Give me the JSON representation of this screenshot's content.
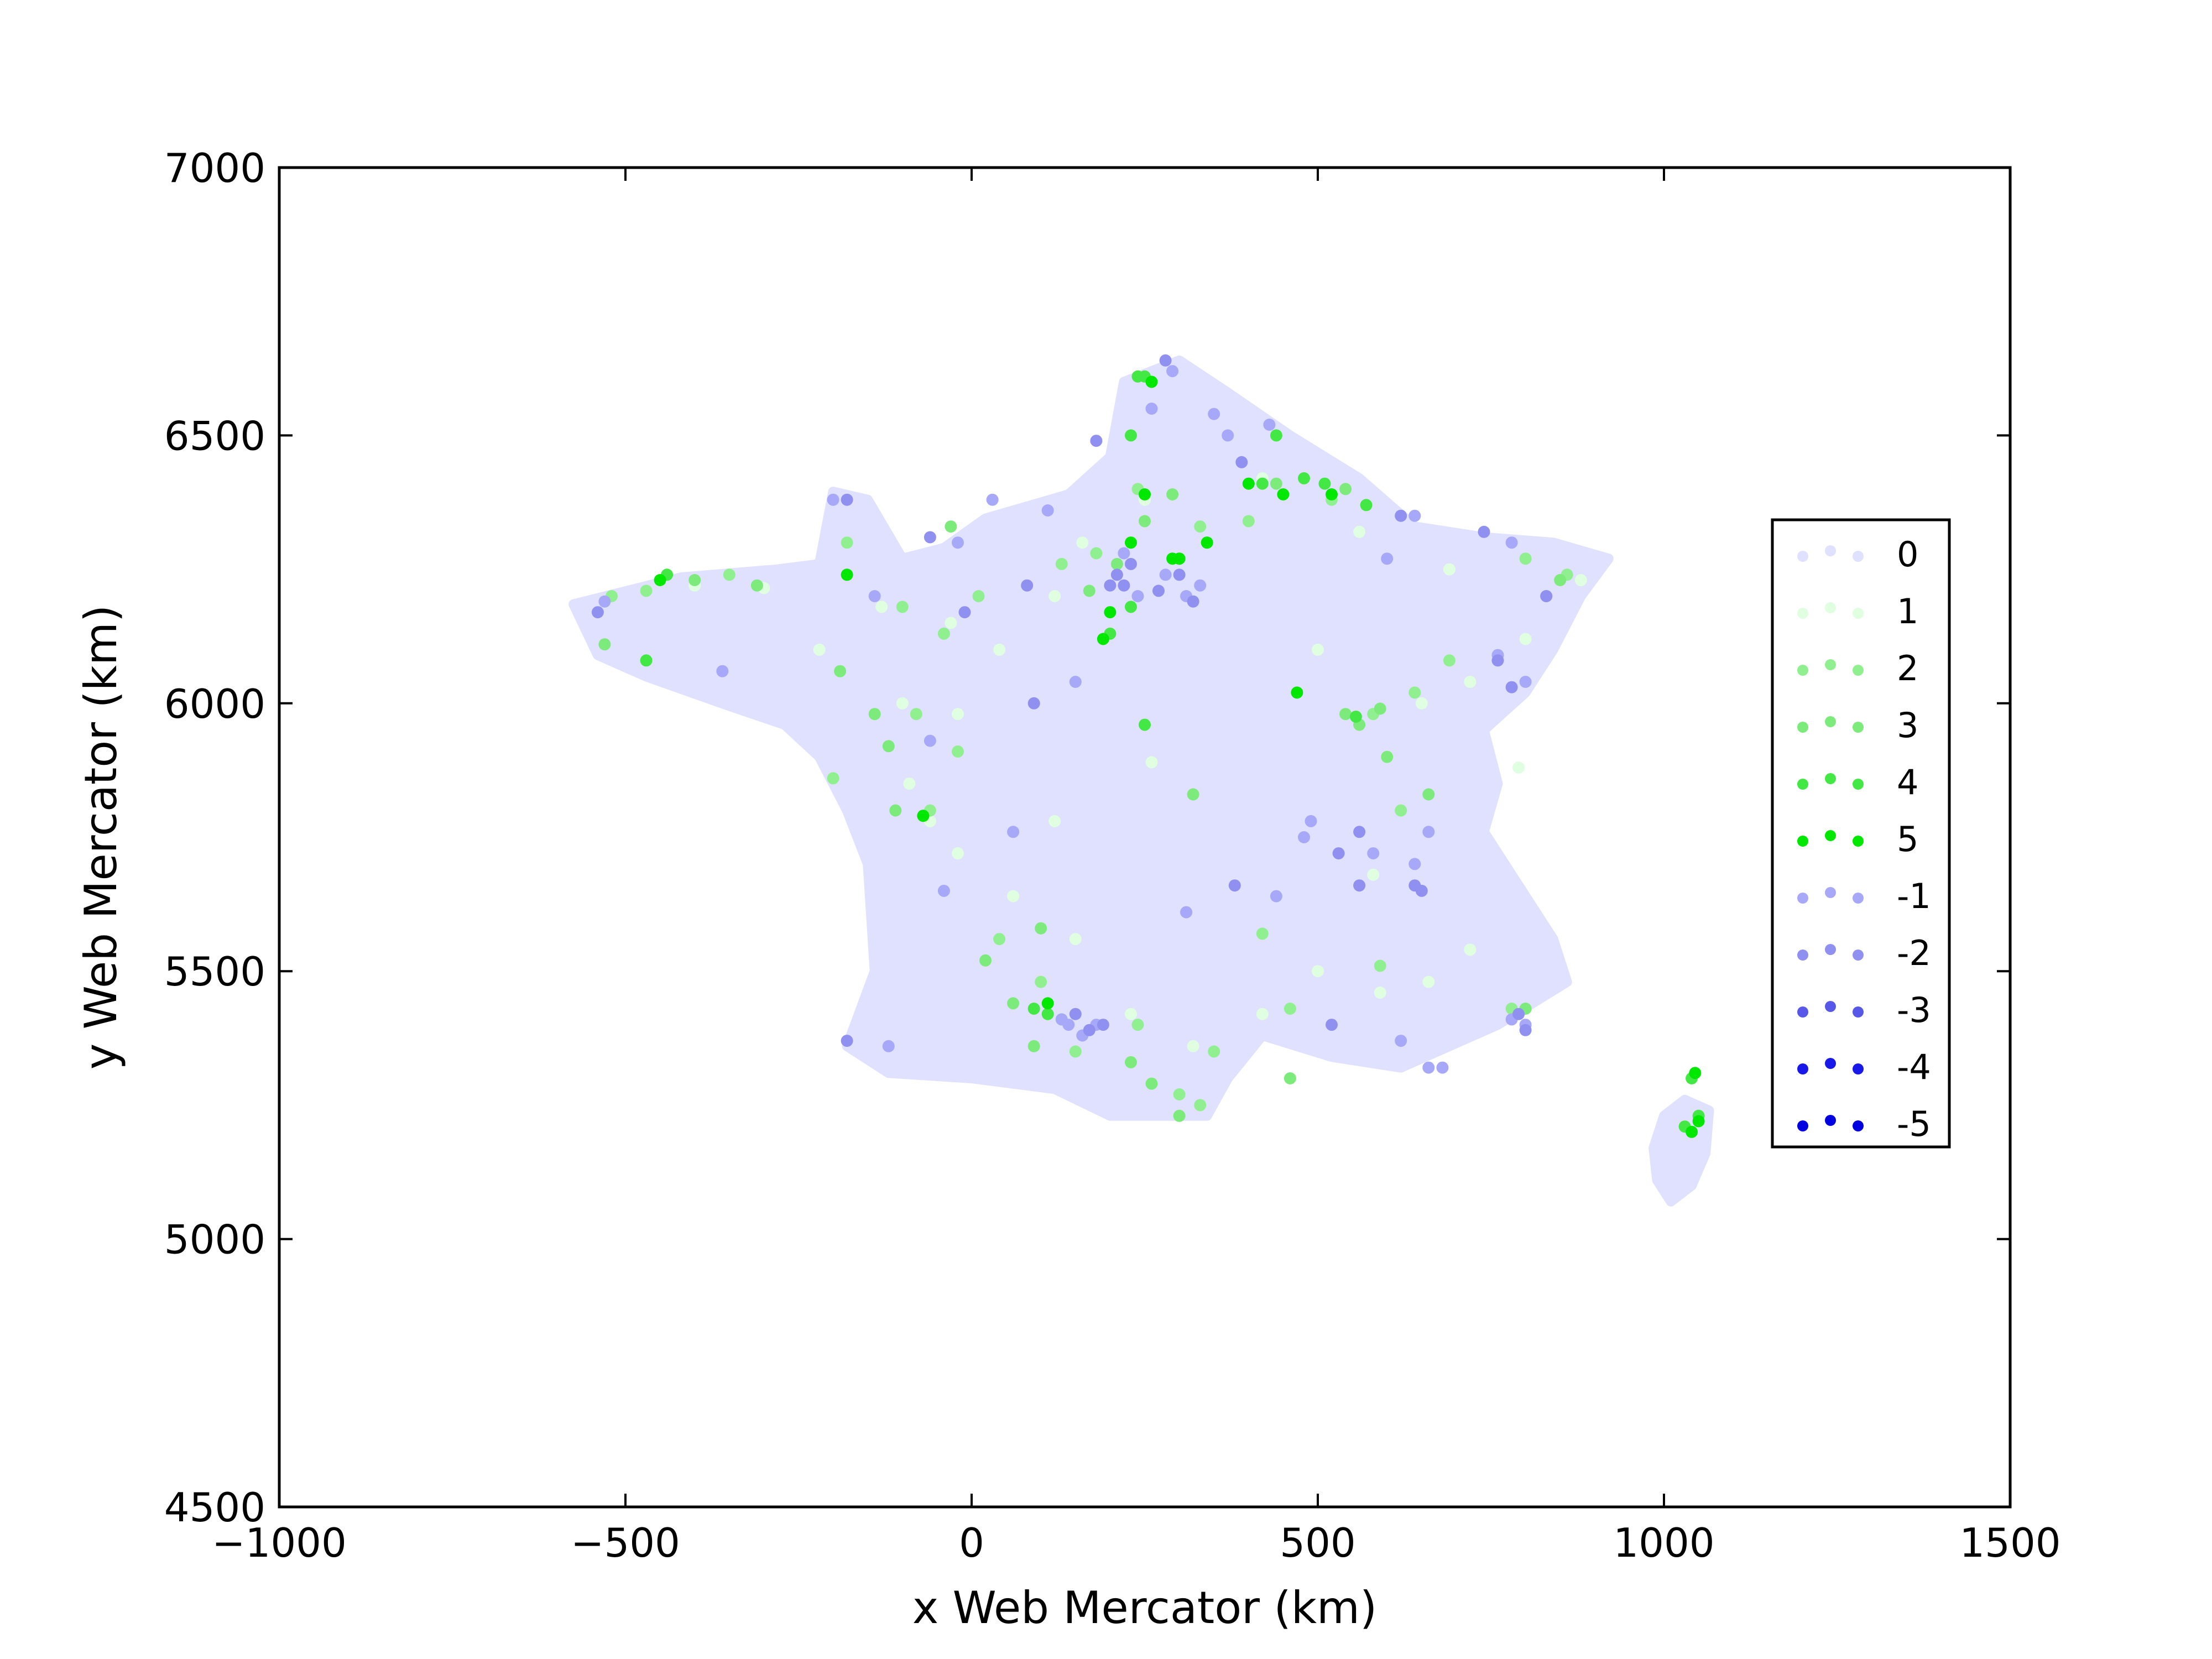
{
  "chart_data": {
    "type": "scatter",
    "title": "",
    "xlabel": "x Web Mercator (km)",
    "ylabel": "y Web Mercator (km)",
    "xlim": [
      -1000,
      1500
    ],
    "ylim": [
      4500,
      7000
    ],
    "xticks": [
      -1000,
      -500,
      0,
      500,
      1000,
      1500
    ],
    "yticks": [
      4500,
      5000,
      5500,
      6000,
      6500,
      7000
    ],
    "xtick_labels": [
      "−1000",
      "−500",
      "0",
      "500",
      "1000",
      "1500"
    ],
    "ytick_labels": [
      "4500",
      "5000",
      "5500",
      "6000",
      "6500",
      "7000"
    ],
    "grid": false,
    "legend_position": "center-right",
    "series": [
      {
        "name": "0",
        "color": "#e0e0ff",
        "role": "background-fill",
        "outline": [
          [
            -575,
            6185
          ],
          [
            -420,
            6235
          ],
          [
            -280,
            6250
          ],
          [
            -220,
            6260
          ],
          [
            -200,
            6395
          ],
          [
            -150,
            6380
          ],
          [
            -100,
            6270
          ],
          [
            -40,
            6290
          ],
          [
            20,
            6345
          ],
          [
            140,
            6390
          ],
          [
            200,
            6460
          ],
          [
            220,
            6600
          ],
          [
            300,
            6640
          ],
          [
            370,
            6580
          ],
          [
            460,
            6500
          ],
          [
            560,
            6420
          ],
          [
            640,
            6330
          ],
          [
            740,
            6310
          ],
          [
            840,
            6300
          ],
          [
            920,
            6270
          ],
          [
            880,
            6200
          ],
          [
            840,
            6100
          ],
          [
            800,
            6020
          ],
          [
            740,
            5950
          ],
          [
            760,
            5850
          ],
          [
            740,
            5760
          ],
          [
            790,
            5660
          ],
          [
            840,
            5560
          ],
          [
            860,
            5480
          ],
          [
            760,
            5400
          ],
          [
            620,
            5320
          ],
          [
            520,
            5340
          ],
          [
            420,
            5380
          ],
          [
            370,
            5300
          ],
          [
            340,
            5230
          ],
          [
            200,
            5230
          ],
          [
            120,
            5280
          ],
          [
            0,
            5300
          ],
          [
            -120,
            5310
          ],
          [
            -180,
            5360
          ],
          [
            -140,
            5500
          ],
          [
            -150,
            5700
          ],
          [
            -180,
            5800
          ],
          [
            -220,
            5900
          ],
          [
            -270,
            5960
          ],
          [
            -350,
            5995
          ],
          [
            -470,
            6050
          ],
          [
            -540,
            6090
          ]
        ],
        "corsica_outline": [
          [
            1030,
            5260
          ],
          [
            1065,
            5240
          ],
          [
            1060,
            5160
          ],
          [
            1040,
            5100
          ],
          [
            1010,
            5070
          ],
          [
            990,
            5110
          ],
          [
            985,
            5170
          ],
          [
            1000,
            5230
          ]
        ]
      },
      {
        "name": "1",
        "color": "#e0ffe0",
        "points": [
          [
            -400,
            6220
          ],
          [
            -300,
            6215
          ],
          [
            -130,
            6180
          ],
          [
            -100,
            6000
          ],
          [
            -90,
            5850
          ],
          [
            -60,
            5780
          ],
          [
            -20,
            5720
          ],
          [
            60,
            5640
          ],
          [
            150,
            5560
          ],
          [
            230,
            5420
          ],
          [
            320,
            5360
          ],
          [
            420,
            5420
          ],
          [
            500,
            5500
          ],
          [
            590,
            5460
          ],
          [
            660,
            5480
          ],
          [
            720,
            5540
          ],
          [
            580,
            5680
          ],
          [
            600,
            5900
          ],
          [
            650,
            6000
          ],
          [
            720,
            6040
          ],
          [
            800,
            6120
          ],
          [
            880,
            6230
          ],
          [
            560,
            6320
          ],
          [
            420,
            6420
          ],
          [
            250,
            6380
          ],
          [
            160,
            6300
          ],
          [
            120,
            6200
          ],
          [
            40,
            6100
          ],
          [
            -30,
            6150
          ],
          [
            -180,
            6300
          ],
          [
            -220,
            6100
          ],
          [
            -20,
            5980
          ],
          [
            120,
            5780
          ],
          [
            260,
            5890
          ],
          [
            500,
            6100
          ],
          [
            690,
            6250
          ],
          [
            790,
            5880
          ]
        ]
      },
      {
        "name": "2",
        "color": "#90f090",
        "points": [
          [
            -520,
            6200
          ],
          [
            -470,
            6210
          ],
          [
            -350,
            6240
          ],
          [
            -180,
            6300
          ],
          [
            -100,
            6180
          ],
          [
            -80,
            5980
          ],
          [
            -60,
            5800
          ],
          [
            40,
            5560
          ],
          [
            100,
            5480
          ],
          [
            150,
            5350
          ],
          [
            240,
            5400
          ],
          [
            300,
            5270
          ],
          [
            330,
            5250
          ],
          [
            350,
            5350
          ],
          [
            460,
            5430
          ],
          [
            590,
            5510
          ],
          [
            620,
            5800
          ],
          [
            580,
            5980
          ],
          [
            640,
            6020
          ],
          [
            690,
            6080
          ],
          [
            780,
            5430
          ],
          [
            860,
            6240
          ],
          [
            800,
            6270
          ],
          [
            520,
            6380
          ],
          [
            400,
            6340
          ],
          [
            330,
            6330
          ],
          [
            240,
            6400
          ],
          [
            180,
            6280
          ],
          [
            130,
            6260
          ],
          [
            10,
            6200
          ],
          [
            -40,
            6130
          ],
          [
            -200,
            5860
          ],
          [
            -20,
            5910
          ],
          [
            420,
            5570
          ]
        ]
      },
      {
        "name": "3",
        "color": "#7ceb7c",
        "points": [
          [
            -530,
            6110
          ],
          [
            -400,
            6230
          ],
          [
            -310,
            6220
          ],
          [
            -190,
            6060
          ],
          [
            -140,
            5980
          ],
          [
            -110,
            5800
          ],
          [
            20,
            5520
          ],
          [
            60,
            5440
          ],
          [
            90,
            5360
          ],
          [
            130,
            5410
          ],
          [
            230,
            5330
          ],
          [
            260,
            5290
          ],
          [
            300,
            5230
          ],
          [
            460,
            5300
          ],
          [
            540,
            5980
          ],
          [
            560,
            5960
          ],
          [
            590,
            5990
          ],
          [
            600,
            5900
          ],
          [
            660,
            5830
          ],
          [
            800,
            5430
          ],
          [
            850,
            6230
          ],
          [
            540,
            6400
          ],
          [
            440,
            6410
          ],
          [
            290,
            6390
          ],
          [
            250,
            6340
          ],
          [
            210,
            6260
          ],
          [
            170,
            6210
          ],
          [
            -30,
            6330
          ],
          [
            -120,
            5920
          ],
          [
            100,
            5580
          ],
          [
            320,
            5830
          ]
        ]
      },
      {
        "name": "4",
        "color": "#44e844",
        "points": [
          [
            -470,
            6080
          ],
          [
            -440,
            6240
          ],
          [
            -70,
            5790
          ],
          [
            90,
            5430
          ],
          [
            110,
            5420
          ],
          [
            250,
            5960
          ],
          [
            230,
            6500
          ],
          [
            250,
            6610
          ],
          [
            420,
            6410
          ],
          [
            440,
            6500
          ],
          [
            480,
            6420
          ],
          [
            510,
            6410
          ],
          [
            570,
            6370
          ],
          [
            555,
            5975
          ],
          [
            1030,
            5210
          ],
          [
            1050,
            5230
          ],
          [
            1040,
            5300
          ],
          [
            300,
            6270
          ],
          [
            340,
            6300
          ],
          [
            230,
            6180
          ],
          [
            200,
            6130
          ],
          [
            240,
            6610
          ]
        ]
      },
      {
        "name": "5",
        "color": "#00e800",
        "points": [
          [
            -450,
            6230
          ],
          [
            -180,
            6240
          ],
          [
            -70,
            5790
          ],
          [
            110,
            5440
          ],
          [
            190,
            6120
          ],
          [
            200,
            6170
          ],
          [
            230,
            6300
          ],
          [
            250,
            6390
          ],
          [
            260,
            6600
          ],
          [
            290,
            6270
          ],
          [
            300,
            6270
          ],
          [
            340,
            6300
          ],
          [
            400,
            6410
          ],
          [
            450,
            6390
          ],
          [
            520,
            6390
          ],
          [
            470,
            6020
          ],
          [
            1040,
            5200
          ],
          [
            1050,
            5220
          ],
          [
            1045,
            5310
          ]
        ]
      },
      {
        "name": "-1",
        "color": "#a8a8f8",
        "points": [
          [
            -530,
            6190
          ],
          [
            -360,
            6060
          ],
          [
            -200,
            6380
          ],
          [
            -140,
            6200
          ],
          [
            -20,
            6300
          ],
          [
            30,
            6380
          ],
          [
            110,
            6360
          ],
          [
            220,
            6280
          ],
          [
            240,
            6200
          ],
          [
            280,
            6240
          ],
          [
            310,
            6200
          ],
          [
            330,
            6220
          ],
          [
            260,
            6550
          ],
          [
            290,
            6620
          ],
          [
            350,
            6540
          ],
          [
            370,
            6500
          ],
          [
            430,
            6520
          ],
          [
            600,
            6270
          ],
          [
            640,
            6350
          ],
          [
            780,
            6300
          ],
          [
            760,
            6090
          ],
          [
            800,
            6040
          ],
          [
            660,
            5760
          ],
          [
            640,
            5700
          ],
          [
            580,
            5720
          ],
          [
            490,
            5780
          ],
          [
            140,
            5400
          ],
          [
            180,
            5400
          ],
          [
            160,
            5380
          ],
          [
            130,
            5410
          ],
          [
            780,
            5410
          ],
          [
            800,
            5400
          ],
          [
            620,
            5370
          ],
          [
            660,
            5320
          ],
          [
            680,
            5320
          ],
          [
            440,
            5640
          ],
          [
            310,
            5610
          ],
          [
            -120,
            5360
          ],
          [
            -40,
            5650
          ],
          [
            60,
            5760
          ],
          [
            150,
            6040
          ],
          [
            -60,
            5930
          ],
          [
            480,
            5750
          ],
          [
            830,
            6200
          ]
        ]
      },
      {
        "name": "-2",
        "color": "#9090f0",
        "points": [
          [
            -540,
            6170
          ],
          [
            -180,
            6380
          ],
          [
            -60,
            6310
          ],
          [
            80,
            6220
          ],
          [
            210,
            6240
          ],
          [
            220,
            6220
          ],
          [
            230,
            6260
          ],
          [
            270,
            6210
          ],
          [
            300,
            6240
          ],
          [
            320,
            6190
          ],
          [
            280,
            6640
          ],
          [
            390,
            6450
          ],
          [
            620,
            6350
          ],
          [
            740,
            6320
          ],
          [
            760,
            6080
          ],
          [
            780,
            6030
          ],
          [
            650,
            5650
          ],
          [
            640,
            5660
          ],
          [
            560,
            5760
          ],
          [
            530,
            5720
          ],
          [
            150,
            5420
          ],
          [
            170,
            5390
          ],
          [
            190,
            5400
          ],
          [
            790,
            5420
          ],
          [
            800,
            5390
          ],
          [
            520,
            5400
          ],
          [
            -180,
            5370
          ],
          [
            -10,
            6170
          ],
          [
            90,
            6000
          ],
          [
            380,
            5660
          ],
          [
            830,
            6200
          ],
          [
            180,
            6490
          ],
          [
            200,
            6220
          ],
          [
            560,
            5660
          ]
        ]
      },
      {
        "name": "-3",
        "color": "#5858e8",
        "points": []
      },
      {
        "name": "-4",
        "color": "#1818e8",
        "points": []
      },
      {
        "name": "-5",
        "color": "#0000e0",
        "points": []
      }
    ],
    "legend": [
      "0",
      "1",
      "2",
      "3",
      "4",
      "5",
      "-1",
      "-2",
      "-3",
      "-4",
      "-5"
    ]
  }
}
